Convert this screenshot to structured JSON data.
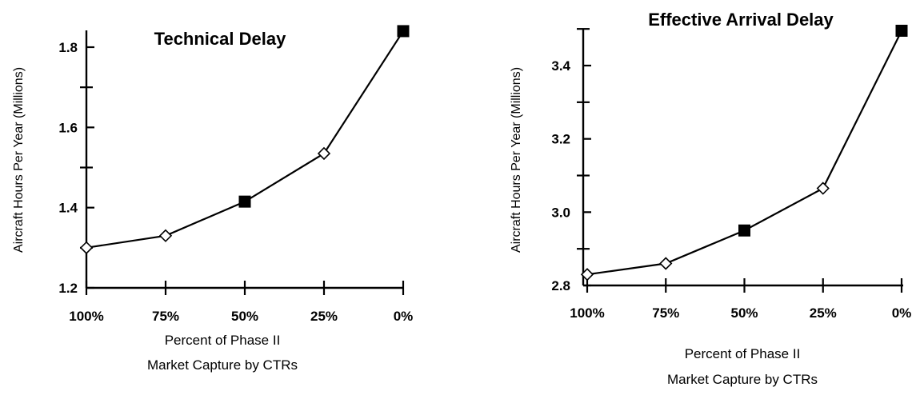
{
  "chart_data": [
    {
      "type": "line",
      "title": "Technical Delay",
      "ylabel": "Aircraft Hours Per Year (Millions)",
      "xlabel_line1": "Percent of Phase II",
      "xlabel_line2": "Market Capture by CTRs",
      "categories": [
        "100%",
        "75%",
        "50%",
        "25%",
        "0%"
      ],
      "series": [
        {
          "values": [
            1.3,
            1.33,
            1.415,
            1.535,
            1.84
          ],
          "markers": [
            "open-diamond",
            "open-diamond",
            "filled-square",
            "open-diamond",
            "filled-square"
          ]
        }
      ],
      "ylim": [
        1.2,
        1.85
      ],
      "yticks": [
        1.2,
        1.4,
        1.6,
        1.8
      ],
      "yticklabels": [
        "1.2",
        "1.4",
        "1.6",
        "1.8"
      ],
      "grid": false
    },
    {
      "type": "line",
      "title": "Effective Arrival Delay",
      "ylabel": "Aircraft Hours Per Year (Millions)",
      "xlabel_line1": "Percent of Phase II",
      "xlabel_line2": "Market Capture by CTRs",
      "categories": [
        "100%",
        "75%",
        "50%",
        "25%",
        "0%"
      ],
      "series": [
        {
          "values": [
            2.83,
            2.86,
            2.95,
            3.065,
            3.495
          ],
          "markers": [
            "open-diamond",
            "open-diamond",
            "filled-square",
            "open-diamond",
            "filled-square"
          ]
        }
      ],
      "ylim": [
        2.8,
        3.5
      ],
      "yticks": [
        2.8,
        3.0,
        3.2,
        3.4
      ],
      "yticklabels": [
        "2.8",
        "3.0",
        "3.2",
        "3.4"
      ],
      "grid": false
    }
  ]
}
